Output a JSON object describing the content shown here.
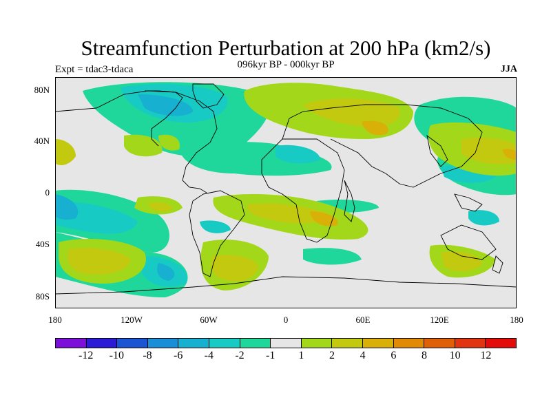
{
  "header": {
    "title": "Streamfunction Perturbation at 200 hPa (km2/s)",
    "subtitle": "096kyr BP - 000kyr BP",
    "experiment": "Expt = tdac3-tdaca",
    "season": "JJA"
  },
  "axes": {
    "lat_labels": [
      "80N",
      "40N",
      "0",
      "40S",
      "80S"
    ],
    "lon_labels": [
      "180",
      "120W",
      "60W",
      "0",
      "60E",
      "120E",
      "180"
    ]
  },
  "colorbar": {
    "colors": [
      "#7c0fd8",
      "#2a1bd6",
      "#1b55d2",
      "#1a8fd8",
      "#17b0d0",
      "#17cbc4",
      "#1fd79a",
      "#e6e6e6",
      "#a3d81a",
      "#c3c90e",
      "#d8b008",
      "#e08a05",
      "#e06008",
      "#e03510",
      "#e40b0b"
    ],
    "labels": [
      "-12",
      "-10",
      "-8",
      "-6",
      "-4",
      "-2",
      "-1",
      "1",
      "2",
      "4",
      "6",
      "8",
      "10",
      "12"
    ]
  },
  "palette": {
    "background": "#e6e6e6",
    "neg1": "#1fd79a",
    "neg2": "#17cbc4",
    "neg3": "#17b0d0",
    "pos1": "#a3d81a",
    "pos2": "#c3c90e",
    "pos3": "#d8b008",
    "pos4": "#e08a05"
  }
}
